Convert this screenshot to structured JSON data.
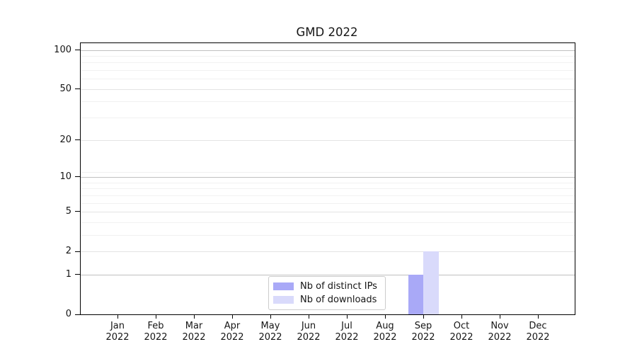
{
  "chart_data": {
    "type": "bar",
    "title": "GMD 2022",
    "categories": [
      "Jan",
      "Feb",
      "Mar",
      "Apr",
      "May",
      "Jun",
      "Jul",
      "Aug",
      "Sep",
      "Oct",
      "Nov",
      "Dec"
    ],
    "x_year_label": "2022",
    "series": [
      {
        "name": "Nb of distinct IPs",
        "color": "#a9a9f7",
        "values": [
          0,
          0,
          0,
          0,
          0,
          0,
          0,
          0,
          1,
          0,
          0,
          0
        ]
      },
      {
        "name": "Nb of downloads",
        "color": "#d9dafb",
        "values": [
          0,
          0,
          0,
          0,
          0,
          0,
          0,
          0,
          2,
          0,
          0,
          0
        ]
      }
    ],
    "xlabel": "",
    "ylabel": "",
    "yscale": "log10(1+y)",
    "ylim": [
      0,
      113
    ],
    "y_ticks": [
      0,
      1,
      2,
      5,
      10,
      20,
      50,
      100
    ],
    "y_emphasis_gridlines": [
      1,
      10,
      100
    ],
    "y_minor_gridlines": [
      3,
      4,
      6,
      7,
      8,
      9,
      11,
      30,
      40,
      60,
      70,
      80,
      90
    ],
    "grid": "horizontal-only",
    "legend": {
      "position": "inside-bottom-center",
      "entries": [
        "Nb of distinct IPs",
        "Nb of downloads"
      ]
    }
  },
  "colors": {
    "background": "#ffffff",
    "axis": "#000000",
    "text": "#151515",
    "grid_emphasis": "#c0c0c0",
    "grid_major": "#e4e4e4",
    "grid_minor": "#f1f1f1",
    "legend_border": "#cccccc",
    "legend_background": "#ffffff"
  }
}
